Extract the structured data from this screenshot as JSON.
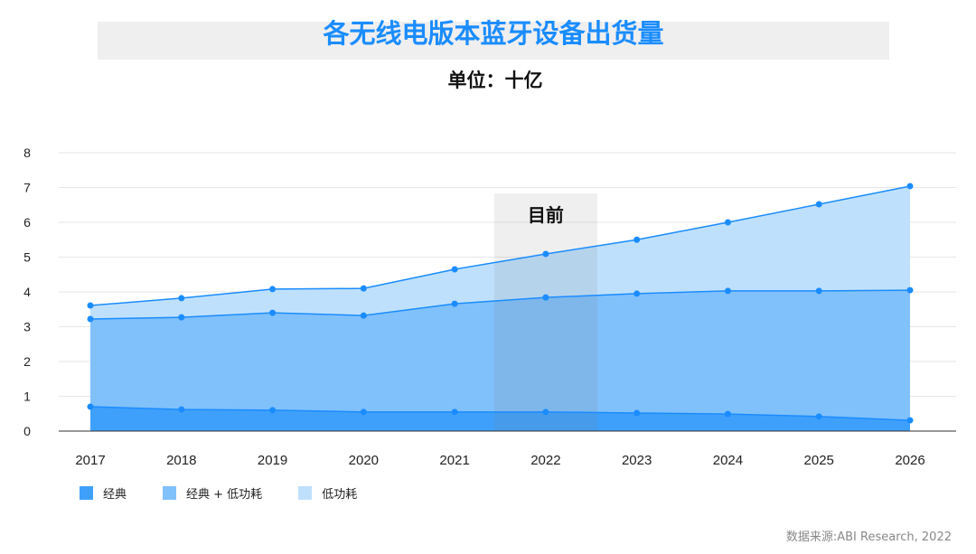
{
  "chart_data": {
    "type": "area",
    "title": "各无线电版本蓝牙设备出货量",
    "subtitle": "单位：十亿",
    "categories": [
      "2017",
      "2018",
      "2019",
      "2020",
      "2021",
      "2022",
      "2023",
      "2024",
      "2025",
      "2026"
    ],
    "y_ticks": [
      "0",
      "1",
      "2",
      "3",
      "4",
      "5",
      "6",
      "7",
      "8"
    ],
    "ylim": [
      0,
      8
    ],
    "grid": true,
    "annotation": "目前",
    "annotation_category": "2022",
    "legend_position": "bottom-left",
    "series": [
      {
        "name": "经典",
        "color": "#3fa0fb",
        "values": [
          0.7,
          0.62,
          0.6,
          0.55,
          0.55,
          0.55,
          0.52,
          0.49,
          0.42,
          0.31
        ]
      },
      {
        "name": "经典 + 低功耗",
        "color": "#80c0fb",
        "values": [
          3.22,
          3.27,
          3.4,
          3.32,
          3.66,
          3.84,
          3.95,
          4.03,
          4.03,
          4.05
        ]
      },
      {
        "name": "低功耗",
        "color": "#bfe0fc",
        "values": [
          3.61,
          3.82,
          4.08,
          4.1,
          4.65,
          5.09,
          5.5,
          6.0,
          6.52,
          7.04
        ]
      }
    ],
    "series_note": "values are cumulative line heights (top of each stacked band)",
    "source": "数据来源:ABI Research, 2022"
  }
}
